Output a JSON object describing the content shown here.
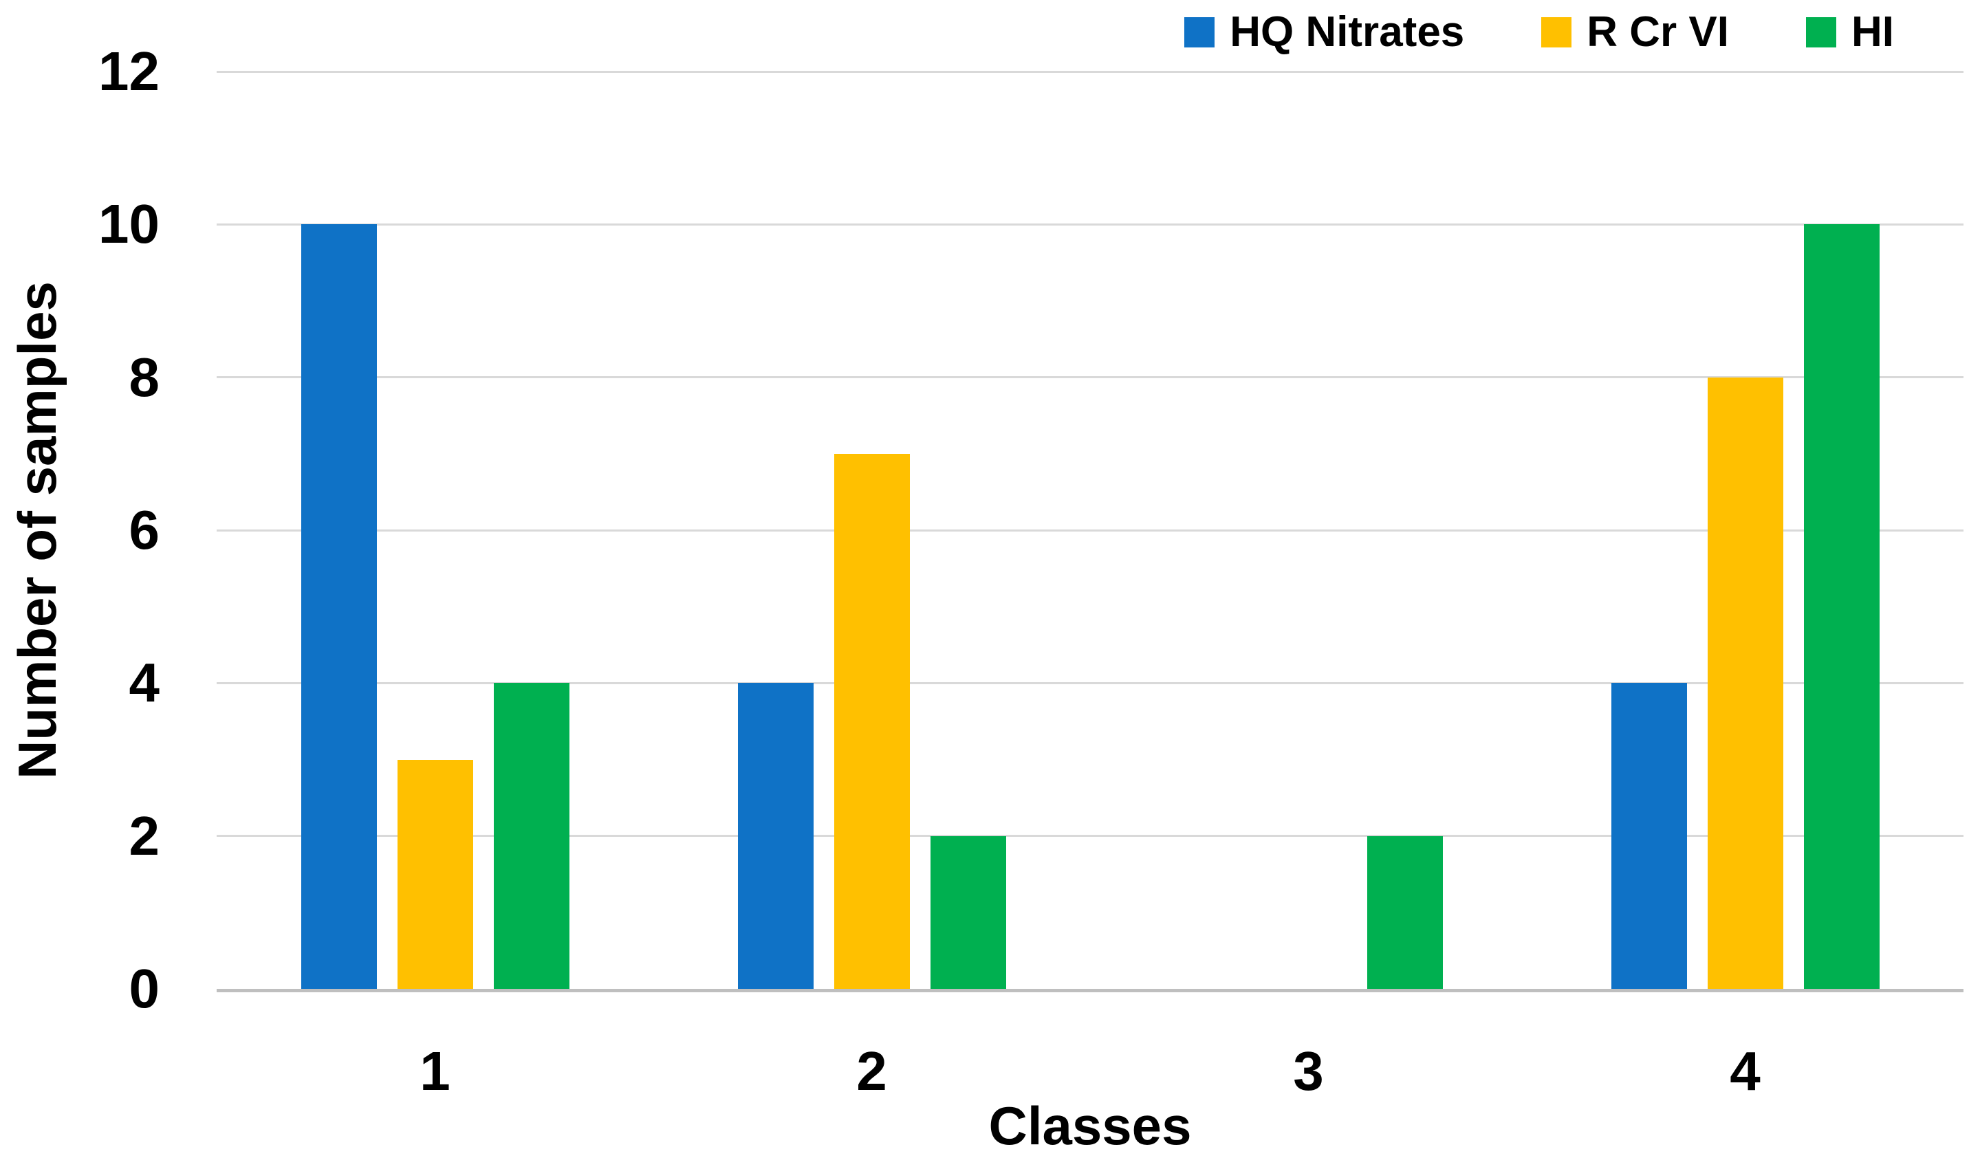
{
  "chart_data": {
    "type": "bar",
    "title": "",
    "categories": [
      "1",
      "2",
      "3",
      "4"
    ],
    "series": [
      {
        "name": "HQ Nitrates",
        "color": "#0F72C6",
        "values": [
          10,
          4,
          0,
          4
        ]
      },
      {
        "name": "R Cr VI",
        "color": "#FFC000",
        "values": [
          3,
          7,
          0,
          8
        ]
      },
      {
        "name": "HI",
        "color": "#00B050",
        "values": [
          4,
          2,
          2,
          10
        ]
      }
    ],
    "xlabel": "Classes",
    "ylabel": "Number of samples",
    "ylim": [
      0,
      12
    ],
    "yticks": [
      0,
      2,
      4,
      6,
      8,
      10,
      12
    ],
    "grid": "horizontal",
    "legend_position": "top-right",
    "gridline_color": "#D9D9D9",
    "axisline_color": "#BFBFBF",
    "background_color": "#FFFFFF"
  }
}
